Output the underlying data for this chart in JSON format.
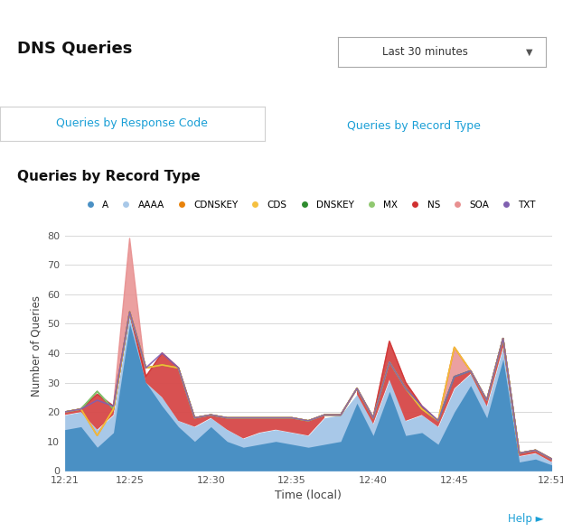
{
  "title": "DNS Queries",
  "subtitle": "Queries by Record Type",
  "tab1": "Queries by Response Code",
  "tab2": "Queries by Record Type",
  "dropdown_text": "Last 30 minutes",
  "xlabel": "Time (local)",
  "ylabel": "Number of Queries",
  "ylim": [
    0,
    85
  ],
  "yticks": [
    0,
    10,
    20,
    30,
    40,
    50,
    60,
    70,
    80
  ],
  "xtick_labels": [
    "12:21",
    "12:25",
    "12:30",
    "12:35",
    "12:40",
    "12:45",
    "12:51"
  ],
  "xtick_positions": [
    0,
    4,
    9,
    14,
    19,
    24,
    30
  ],
  "background_color": "#ffffff",
  "plot_bg_color": "#ffffff",
  "grid_color": "#d8d8d8",
  "legend_items": [
    {
      "label": "A",
      "color": "#4a90c4"
    },
    {
      "label": "AAAA",
      "color": "#a8c8e8"
    },
    {
      "label": "CDNSKEY",
      "color": "#e8820a"
    },
    {
      "label": "CDS",
      "color": "#f5c040"
    },
    {
      "label": "DNSKEY",
      "color": "#2e8b2e"
    },
    {
      "label": "MX",
      "color": "#90c870"
    },
    {
      "label": "NS",
      "color": "#d03030"
    },
    {
      "label": "SOA",
      "color": "#e89090"
    },
    {
      "label": "TXT",
      "color": "#8060b0"
    }
  ],
  "A": [
    14,
    15,
    8,
    13,
    50,
    30,
    22,
    15,
    10,
    15,
    10,
    8,
    9,
    10,
    9,
    8,
    9,
    10,
    23,
    12,
    27,
    12,
    13,
    9,
    20,
    29,
    18,
    38,
    3,
    4,
    2
  ],
  "AAAA": [
    19,
    20,
    14,
    19,
    53,
    30,
    25,
    17,
    15,
    18,
    14,
    11,
    13,
    14,
    13,
    12,
    18,
    19,
    26,
    16,
    31,
    17,
    19,
    15,
    28,
    33,
    22,
    42,
    5,
    6,
    3
  ],
  "SOA": [
    20,
    21,
    26,
    22,
    79,
    32,
    40,
    35,
    18,
    19,
    18,
    18,
    18,
    18,
    18,
    17,
    19,
    19,
    28,
    18,
    44,
    30,
    22,
    17,
    42,
    34,
    24,
    45,
    6,
    7,
    4
  ],
  "NS": [
    20,
    21,
    26,
    22,
    54,
    32,
    40,
    35,
    18,
    19,
    18,
    18,
    18,
    18,
    18,
    17,
    19,
    19,
    28,
    18,
    44,
    30,
    22,
    17,
    32,
    34,
    24,
    45,
    6,
    7,
    4
  ],
  "DNSKEY": [
    20,
    21,
    27,
    21,
    54,
    35,
    36,
    35,
    18,
    19,
    18,
    18,
    18,
    18,
    18,
    17,
    19,
    19,
    28,
    18,
    37,
    28,
    21,
    17,
    32,
    34,
    24,
    45,
    6,
    7,
    4
  ],
  "MX": [
    20,
    21,
    27,
    21,
    54,
    35,
    36,
    35,
    18,
    19,
    18,
    18,
    18,
    18,
    18,
    17,
    19,
    19,
    28,
    18,
    37,
    28,
    21,
    17,
    32,
    34,
    24,
    45,
    6,
    7,
    4
  ],
  "CDNSKEY": [
    20,
    21,
    12,
    21,
    54,
    35,
    36,
    35,
    18,
    19,
    18,
    18,
    18,
    18,
    18,
    17,
    19,
    19,
    28,
    18,
    37,
    28,
    21,
    17,
    42,
    34,
    24,
    45,
    6,
    7,
    4
  ],
  "CDS": [
    20,
    21,
    12,
    21,
    54,
    35,
    36,
    35,
    18,
    19,
    18,
    18,
    18,
    18,
    18,
    17,
    19,
    19,
    28,
    18,
    37,
    28,
    21,
    17,
    42,
    34,
    24,
    45,
    6,
    7,
    4
  ],
  "TXT": [
    20,
    21,
    24,
    22,
    54,
    35,
    40,
    35,
    18,
    19,
    18,
    18,
    18,
    18,
    18,
    17,
    19,
    19,
    28,
    18,
    37,
    28,
    22,
    17,
    32,
    34,
    24,
    45,
    6,
    7,
    4
  ],
  "tab_border_color": "#1a9fd6",
  "tab_text_color": "#1a9fd6",
  "header_line_color": "#e0e0e0",
  "tab_divider_color": "#c0c0c0"
}
